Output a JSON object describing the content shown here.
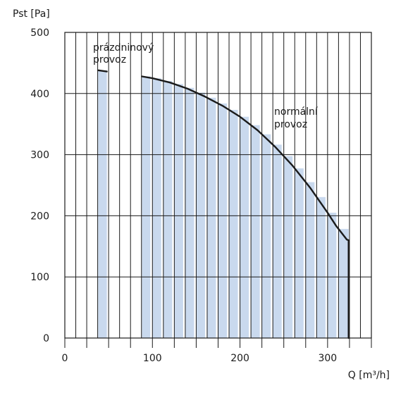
{
  "chart_data": {
    "type": "area",
    "title": "",
    "xlabel": "Q [m³/h]",
    "ylabel": "Pst [Pa]",
    "xlim": [
      0,
      350
    ],
    "ylim": [
      0,
      500
    ],
    "x_ticks": [
      0,
      100,
      200,
      300
    ],
    "y_ticks": [
      0,
      100,
      200,
      300,
      400,
      500
    ],
    "grid": true,
    "fill_color": "#c9d9ee",
    "line_color": "#1a1a1a",
    "series": [
      {
        "name": "prázdninový provoz",
        "x": [
          38,
          48
        ],
        "y": [
          438,
          436
        ]
      },
      {
        "name": "normální provoz",
        "x": [
          88,
          100,
          120,
          140,
          160,
          180,
          200,
          220,
          240,
          260,
          280,
          300,
          310,
          322,
          324
        ],
        "y": [
          428,
          425,
          418,
          408,
          395,
          380,
          362,
          340,
          313,
          282,
          246,
          205,
          183,
          161,
          160
        ]
      }
    ],
    "drop_to_zero_x": 324,
    "annotations": [
      {
        "lines": [
          "prázdninový",
          "provoz"
        ]
      },
      {
        "lines": [
          "normální",
          "provoz"
        ]
      }
    ]
  }
}
